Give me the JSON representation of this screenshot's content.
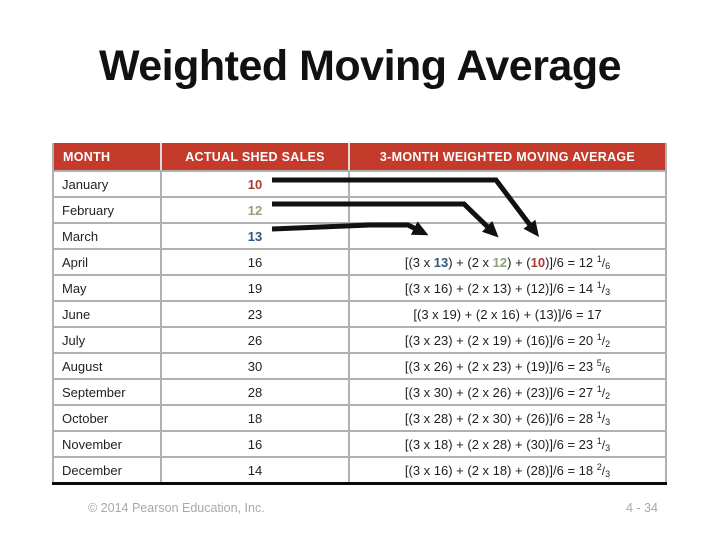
{
  "slide": {
    "title": "Weighted Moving Average",
    "footer_left": "© 2014 Pearson Education, Inc.",
    "footer_right": "4 - 34"
  },
  "colors": {
    "header_bg": "#C43A2B",
    "header_text": "#FFFFFF",
    "red": "#AE3B30",
    "green": "#8EA377",
    "blue": "#33597D",
    "grid": "#B0B0B0",
    "footer": "#A8A8A8",
    "arrow": "#111111"
  },
  "table": {
    "columns": [
      "MONTH",
      "ACTUAL SHED SALES",
      "3-MONTH WEIGHTED MOVING AVERAGE"
    ],
    "rows": [
      {
        "month": "January",
        "sales": "10",
        "sales_color": "red",
        "formula": []
      },
      {
        "month": "February",
        "sales": "12",
        "sales_color": "green",
        "formula": []
      },
      {
        "month": "March",
        "sales": "13",
        "sales_color": "blue",
        "formula": []
      },
      {
        "month": "April",
        "sales": "16",
        "formula": [
          {
            "t": "[(3 x "
          },
          {
            "t": "13",
            "c": "blue"
          },
          {
            "t": ") + (2 x "
          },
          {
            "t": "12",
            "c": "green"
          },
          {
            "t": ") + ("
          },
          {
            "t": "10",
            "c": "red"
          },
          {
            "t": ")]/6 = 12 "
          },
          {
            "fr": [
              "1",
              "6"
            ]
          }
        ]
      },
      {
        "month": "May",
        "sales": "19",
        "formula": [
          {
            "t": "[(3 x 16) + (2 x 13) + (12)]/6 = 14 "
          },
          {
            "fr": [
              "1",
              "3"
            ]
          }
        ]
      },
      {
        "month": "June",
        "sales": "23",
        "formula": [
          {
            "t": "[(3 x 19) + (2 x 16) + (13)]/6 = 17"
          }
        ]
      },
      {
        "month": "July",
        "sales": "26",
        "formula": [
          {
            "t": "[(3 x 23) + (2 x 19) + (16)]/6 = 20 "
          },
          {
            "fr": [
              "1",
              "2"
            ]
          }
        ]
      },
      {
        "month": "August",
        "sales": "30",
        "formula": [
          {
            "t": "[(3 x 26) + (2 x 23) + (19)]/6 = 23 "
          },
          {
            "fr": [
              "5",
              "6"
            ]
          }
        ]
      },
      {
        "month": "September",
        "sales": "28",
        "formula": [
          {
            "t": "[(3 x 30) + (2 x 26) + (23)]/6 = 27 "
          },
          {
            "fr": [
              "1",
              "2"
            ]
          }
        ]
      },
      {
        "month": "October",
        "sales": "18",
        "formula": [
          {
            "t": "[(3 x 28) + (2 x 30) + (26)]/6 = 28 "
          },
          {
            "fr": [
              "1",
              "3"
            ]
          }
        ]
      },
      {
        "month": "November",
        "sales": "16",
        "formula": [
          {
            "t": "[(3 x 18) + (2 x 28) + (30)]/6 = 23 "
          },
          {
            "fr": [
              "1",
              "3"
            ]
          }
        ]
      },
      {
        "month": "December",
        "sales": "14",
        "formula": [
          {
            "t": "[(3 x 16) + (2 x 18) + (28)]/6 = 18 "
          },
          {
            "fr": [
              "2",
              "3"
            ]
          }
        ]
      }
    ]
  }
}
